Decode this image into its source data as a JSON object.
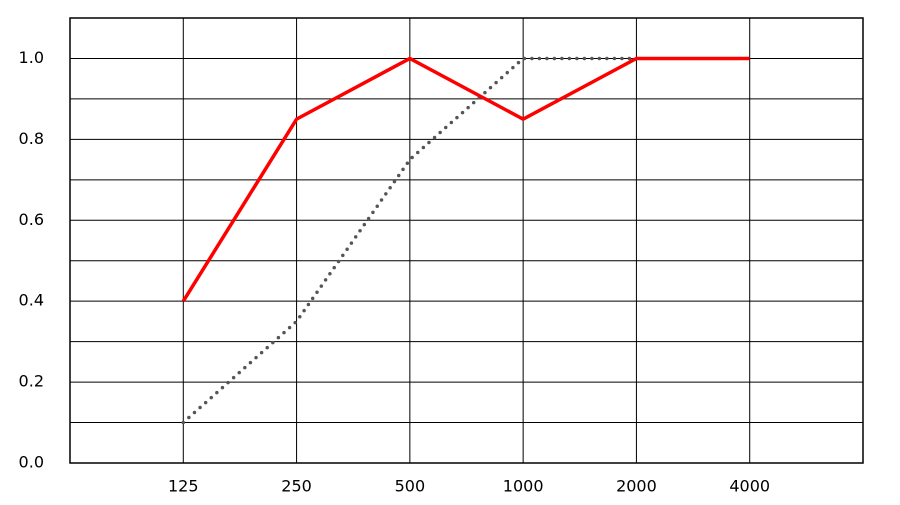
{
  "chart_data": {
    "type": "line",
    "categories": [
      125,
      250,
      500,
      1000,
      2000,
      4000
    ],
    "series": [
      {
        "color": "#ff0000",
        "style": "solid",
        "values": [
          0.4,
          0.85,
          1.0,
          0.85,
          1.0,
          1.0
        ]
      },
      {
        "color": "#555555",
        "style": "dotted",
        "values": [
          0.1,
          0.35,
          0.75,
          1.0,
          1.0,
          null
        ]
      }
    ],
    "ylim": [
      0,
      1.1
    ],
    "yticks": [
      {
        "value": 0,
        "label": "0.0"
      },
      0.2,
      0.4,
      0.6,
      0.8,
      {
        "value": 1,
        "label": "1.0"
      }
    ],
    "minor_yticks": [
      0.1,
      0.3,
      0.5,
      0.7,
      0.9
    ],
    "grid": true
  }
}
